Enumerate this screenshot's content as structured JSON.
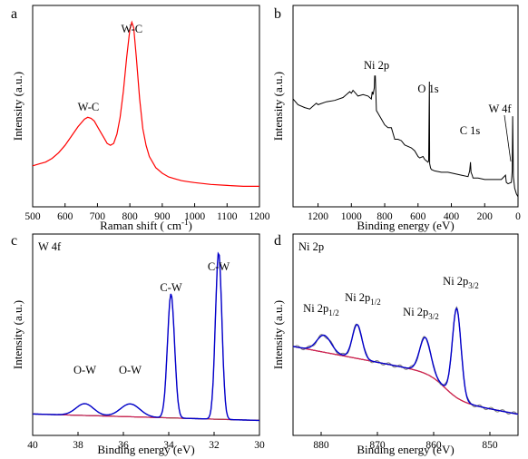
{
  "colors": {
    "raman": "#ff0000",
    "survey": "#000000",
    "envelope": "#0000cc",
    "component": "#cc1f5c",
    "background": "#8b3a3a",
    "ow_fit": "#d4a017",
    "cw_component": "#2e8b2e",
    "ni_raw": "#808080",
    "ni_bg": "#cc8400",
    "annot_blue": "#1a1acc",
    "annot_green": "#2e9b6e"
  },
  "chart_data": [
    {
      "panel": "a",
      "type": "line",
      "xlabel_main": "Raman shift ( cm",
      "xlabel_sup": "-1",
      "xlabel_end": ")",
      "ylabel": "Intensity (a.u.)",
      "xlim": [
        500,
        1200
      ],
      "xticks": [
        "500",
        "600",
        "700",
        "800",
        "900",
        "1000",
        "1100",
        "1200"
      ],
      "annotations": [
        {
          "text": "W-C",
          "x": 672
        },
        {
          "text": "W-C",
          "x": 806
        }
      ],
      "series": [
        {
          "x": [
            500,
            520,
            540,
            560,
            580,
            600,
            620,
            640,
            660,
            670,
            680,
            690,
            700,
            710,
            720,
            730,
            740,
            750,
            760,
            770,
            780,
            790,
            800,
            806,
            812,
            820,
            830,
            840,
            850,
            860,
            880,
            900,
            920,
            940,
            960,
            980,
            1000,
            1050,
            1100,
            1150,
            1200
          ],
          "y": [
            0.22,
            0.23,
            0.24,
            0.26,
            0.29,
            0.33,
            0.38,
            0.43,
            0.47,
            0.48,
            0.475,
            0.46,
            0.43,
            0.4,
            0.37,
            0.34,
            0.33,
            0.34,
            0.39,
            0.48,
            0.62,
            0.8,
            0.95,
            0.99,
            0.96,
            0.8,
            0.58,
            0.42,
            0.33,
            0.27,
            0.21,
            0.18,
            0.16,
            0.15,
            0.14,
            0.135,
            0.13,
            0.12,
            0.115,
            0.11,
            0.11
          ]
        }
      ]
    },
    {
      "panel": "b",
      "type": "line",
      "xlabel": "Binding energy (eV)",
      "ylabel": "Intensity (a.u.)",
      "xlim": [
        1350,
        0
      ],
      "xticks": [
        "1200",
        "1000",
        "800",
        "600",
        "400",
        "200",
        "0"
      ],
      "annotations": [
        {
          "text": "Ni 2p",
          "x": 855
        },
        {
          "text": "O 1s",
          "x": 531
        },
        {
          "text": "C 1s",
          "x": 284
        },
        {
          "text": "W 4f",
          "x": 33
        }
      ],
      "series": [
        {
          "x": [
            1350,
            1320,
            1280,
            1250,
            1230,
            1210,
            1200,
            1150,
            1100,
            1050,
            1010,
            1000,
            990,
            975,
            960,
            930,
            900,
            880,
            875,
            870,
            862,
            860,
            856,
            850,
            840,
            820,
            800,
            780,
            760,
            740,
            720,
            700,
            680,
            660,
            640,
            620,
            600,
            590,
            570,
            560,
            540,
            536,
            532,
            530,
            525,
            520,
            500,
            460,
            420,
            380,
            340,
            300,
            290,
            285,
            282,
            275,
            270,
            260,
            240,
            200,
            150,
            100,
            75,
            70,
            60,
            40,
            35,
            32,
            28,
            20,
            10,
            0
          ],
          "y": [
            0.7,
            0.66,
            0.64,
            0.63,
            0.65,
            0.67,
            0.66,
            0.68,
            0.69,
            0.71,
            0.75,
            0.74,
            0.76,
            0.74,
            0.72,
            0.73,
            0.72,
            0.7,
            0.75,
            0.73,
            0.78,
            0.86,
            0.86,
            0.62,
            0.6,
            0.56,
            0.52,
            0.5,
            0.5,
            0.42,
            0.42,
            0.41,
            0.38,
            0.37,
            0.36,
            0.34,
            0.3,
            0.29,
            0.3,
            0.28,
            0.26,
            0.27,
            0.82,
            0.25,
            0.22,
            0.21,
            0.2,
            0.19,
            0.19,
            0.18,
            0.17,
            0.16,
            0.2,
            0.26,
            0.19,
            0.17,
            0.15,
            0.15,
            0.15,
            0.14,
            0.14,
            0.14,
            0.17,
            0.12,
            0.11,
            0.12,
            0.2,
            0.58,
            0.16,
            0.08,
            0.04,
            0.02
          ]
        }
      ]
    },
    {
      "panel": "c",
      "type": "line",
      "xlabel": "Binding energy (eV)",
      "ylabel": "Intensity (a.u.)",
      "xlim": [
        40,
        30
      ],
      "xticks": [
        "40",
        "38",
        "36",
        "34",
        "32",
        "30"
      ],
      "legend_text": "W 4f",
      "annotations": [
        {
          "text": "O-W",
          "x": 37.7,
          "color": "annot_blue"
        },
        {
          "text": "O-W",
          "x": 35.7,
          "color": "annot_blue"
        },
        {
          "text": "C-W",
          "x": 33.9,
          "color": "annot_green"
        },
        {
          "text": "C-W",
          "x": 31.8,
          "color": "annot_green"
        }
      ],
      "peaks": [
        {
          "name": "O-W",
          "center": 37.7,
          "height": 0.055,
          "width": 0.55,
          "color": "ow_fit"
        },
        {
          "name": "O-W",
          "center": 35.7,
          "height": 0.06,
          "width": 0.6,
          "color": "cw_component"
        },
        {
          "name": "C-W",
          "center": 33.9,
          "height": 0.58,
          "width": 0.22,
          "color": "component"
        },
        {
          "name": "C-W",
          "center": 31.8,
          "height": 0.78,
          "width": 0.2,
          "color": "component"
        }
      ],
      "baseline": {
        "start": 0.08,
        "end": 0.05
      }
    },
    {
      "panel": "d",
      "type": "line",
      "xlabel": "Binding energy (eV)",
      "ylabel": "Intensity (a.u.)",
      "xlim": [
        885,
        845
      ],
      "xticks": [
        "880",
        "870",
        "860",
        "850"
      ],
      "legend_text": "Ni 2p",
      "annotations": [
        {
          "base": "Ni 2p",
          "sub": "1/2",
          "x": 879.5,
          "color": "annot_blue"
        },
        {
          "base": "Ni 2p",
          "sub": "1/2",
          "x": 873.6,
          "color": "annot_blue"
        },
        {
          "base": "Ni 2p",
          "sub": "3/2",
          "x": 861.5,
          "color": "annot_green"
        },
        {
          "base": "Ni 2p",
          "sub": "3/2",
          "x": 855.9,
          "color": "annot_green"
        }
      ],
      "peaks": [
        {
          "center": 879.5,
          "height": 0.08,
          "width": 1.8
        },
        {
          "center": 873.6,
          "height": 0.16,
          "width": 1.2
        },
        {
          "center": 861.5,
          "height": 0.17,
          "width": 1.4
        },
        {
          "center": 855.9,
          "height": 0.42,
          "width": 1.1
        }
      ],
      "baseline": {
        "start": 0.42,
        "end": 0.22,
        "step_center": 858,
        "step": 0.12
      }
    }
  ]
}
